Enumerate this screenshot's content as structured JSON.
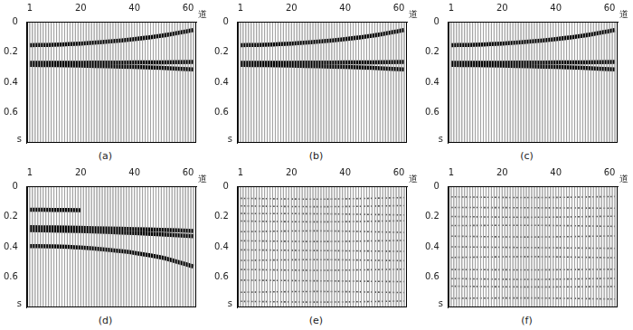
{
  "chart_data": [
    {
      "type": "line",
      "title": "(a)",
      "x_label": "道",
      "y_label": "s",
      "traces": 62,
      "xlim": [
        0,
        63
      ],
      "xticks": [
        1,
        20,
        40,
        60
      ],
      "ylim": [
        0,
        0.8
      ],
      "yticks": [
        0,
        0.2,
        0.4,
        0.6
      ],
      "x": [
        1,
        10,
        20,
        30,
        40,
        50,
        62
      ],
      "series": [
        {
          "color": "#000000",
          "line_style": "solid",
          "values": [
            0.155,
            0.152,
            0.145,
            0.132,
            0.115,
            0.093,
            0.055
          ]
        },
        {
          "color": "#000000",
          "line_style": "solid",
          "values": [
            0.272,
            0.272,
            0.271,
            0.27,
            0.269,
            0.268,
            0.266
          ]
        },
        {
          "color": "#000000",
          "line_style": "solid",
          "values": [
            0.285,
            0.287,
            0.29,
            0.294,
            0.299,
            0.305,
            0.315
          ]
        }
      ]
    },
    {
      "type": "line",
      "title": "(b)",
      "x_label": "道",
      "y_label": "s",
      "traces": 62,
      "xlim": [
        0,
        63
      ],
      "xticks": [
        1,
        20,
        40,
        60
      ],
      "ylim": [
        0,
        0.8
      ],
      "yticks": [
        0,
        0.2,
        0.4,
        0.6
      ],
      "x": [
        1,
        10,
        20,
        30,
        40,
        50,
        62
      ],
      "series": [
        {
          "color": "#000000",
          "line_style": "solid",
          "values": [
            0.155,
            0.152,
            0.145,
            0.132,
            0.115,
            0.093,
            0.055
          ]
        },
        {
          "color": "#000000",
          "line_style": "solid",
          "values": [
            0.272,
            0.272,
            0.271,
            0.27,
            0.269,
            0.268,
            0.266
          ]
        },
        {
          "color": "#000000",
          "line_style": "solid",
          "values": [
            0.285,
            0.287,
            0.29,
            0.294,
            0.299,
            0.305,
            0.315
          ]
        }
      ]
    },
    {
      "type": "line",
      "title": "(c)",
      "x_label": "道",
      "y_label": "s",
      "traces": 62,
      "xlim": [
        0,
        63
      ],
      "xticks": [
        1,
        20,
        40,
        60
      ],
      "ylim": [
        0,
        0.8
      ],
      "yticks": [
        0,
        0.2,
        0.4,
        0.6
      ],
      "x": [
        1,
        10,
        20,
        30,
        40,
        50,
        62
      ],
      "series": [
        {
          "color": "#000000",
          "line_style": "solid",
          "values": [
            0.155,
            0.152,
            0.145,
            0.132,
            0.115,
            0.093,
            0.055
          ]
        },
        {
          "color": "#000000",
          "line_style": "solid",
          "values": [
            0.272,
            0.272,
            0.271,
            0.27,
            0.269,
            0.268,
            0.266
          ]
        },
        {
          "color": "#000000",
          "line_style": "solid",
          "values": [
            0.285,
            0.287,
            0.29,
            0.294,
            0.299,
            0.305,
            0.315
          ]
        }
      ]
    },
    {
      "type": "line",
      "title": "(d)",
      "x_label": "道",
      "y_label": "s",
      "traces": 62,
      "xlim": [
        0,
        63
      ],
      "xticks": [
        1,
        20,
        40,
        60
      ],
      "ylim": [
        0,
        0.8
      ],
      "yticks": [
        0,
        0.2,
        0.4,
        0.6
      ],
      "x": [
        1,
        10,
        20,
        30,
        40,
        50,
        62
      ],
      "series": [
        {
          "color": "#000000",
          "line_style": "solid",
          "values": [
            0.155,
            0.156,
            0.158,
            null,
            null,
            null,
            null
          ]
        },
        {
          "color": "#000000",
          "line_style": "solid",
          "values": [
            0.27,
            0.272,
            0.275,
            0.279,
            0.283,
            0.288,
            0.295
          ]
        },
        {
          "color": "#000000",
          "line_style": "solid",
          "values": [
            0.29,
            0.292,
            0.296,
            0.302,
            0.309,
            0.318,
            0.33
          ]
        },
        {
          "color": "#000000",
          "line_style": "solid",
          "values": [
            0.395,
            0.397,
            0.405,
            0.42,
            0.44,
            0.47,
            0.53
          ]
        }
      ]
    },
    {
      "type": "line",
      "title": "(e)",
      "x_label": "道",
      "y_label": "s",
      "traces": 62,
      "xlim": [
        0,
        63
      ],
      "xticks": [
        1,
        20,
        40,
        60
      ],
      "ylim": [
        0,
        0.8
      ],
      "yticks": [
        0,
        0.2,
        0.4,
        0.6
      ],
      "x": [
        1,
        31,
        62
      ],
      "series": [
        {
          "color": "#555555",
          "line_style": "dotted",
          "values": [
            0.08,
            0.085,
            0.075
          ]
        },
        {
          "color": "#555555",
          "line_style": "dotted",
          "values": [
            0.13,
            0.135,
            0.128
          ]
        },
        {
          "color": "#555555",
          "line_style": "dotted",
          "values": [
            0.18,
            0.182,
            0.19
          ]
        },
        {
          "color": "#555555",
          "line_style": "dotted",
          "values": [
            0.23,
            0.235,
            0.228
          ]
        },
        {
          "color": "#555555",
          "line_style": "dotted",
          "values": [
            0.3,
            0.295,
            0.305
          ]
        },
        {
          "color": "#555555",
          "line_style": "dotted",
          "values": [
            0.36,
            0.365,
            0.358
          ]
        },
        {
          "color": "#555555",
          "line_style": "dotted",
          "values": [
            0.42,
            0.425,
            0.43
          ]
        },
        {
          "color": "#555555",
          "line_style": "dotted",
          "values": [
            0.49,
            0.485,
            0.492
          ]
        },
        {
          "color": "#555555",
          "line_style": "dotted",
          "values": [
            0.55,
            0.555,
            0.548
          ]
        },
        {
          "color": "#555555",
          "line_style": "dotted",
          "values": [
            0.62,
            0.625,
            0.63
          ]
        },
        {
          "color": "#555555",
          "line_style": "dotted",
          "values": [
            0.7,
            0.695,
            0.702
          ]
        },
        {
          "color": "#555555",
          "line_style": "dotted",
          "values": [
            0.76,
            0.765,
            0.758
          ]
        }
      ]
    },
    {
      "type": "line",
      "title": "(f)",
      "x_label": "道",
      "y_label": "s",
      "traces": 62,
      "xlim": [
        0,
        63
      ],
      "xticks": [
        1,
        20,
        40,
        60
      ],
      "ylim": [
        0,
        0.8
      ],
      "yticks": [
        0,
        0.2,
        0.4,
        0.6
      ],
      "x": [
        1,
        31,
        62
      ],
      "series": [
        {
          "color": "#555555",
          "line_style": "dotted",
          "values": [
            0.07,
            0.075,
            0.068
          ]
        },
        {
          "color": "#555555",
          "line_style": "dotted",
          "values": [
            0.14,
            0.142,
            0.145
          ]
        },
        {
          "color": "#555555",
          "line_style": "dotted",
          "values": [
            0.2,
            0.205,
            0.198
          ]
        },
        {
          "color": "#555555",
          "line_style": "dotted",
          "values": [
            0.26,
            0.258,
            0.265
          ]
        },
        {
          "color": "#555555",
          "line_style": "dotted",
          "values": [
            0.33,
            0.335,
            0.328
          ]
        },
        {
          "color": "#555555",
          "line_style": "dotted",
          "values": [
            0.4,
            0.405,
            0.41
          ]
        },
        {
          "color": "#555555",
          "line_style": "dotted",
          "values": [
            0.47,
            0.465,
            0.472
          ]
        },
        {
          "color": "#555555",
          "line_style": "dotted",
          "values": [
            0.55,
            0.552,
            0.548
          ]
        },
        {
          "color": "#555555",
          "line_style": "dotted",
          "values": [
            0.61,
            0.615,
            0.608
          ]
        },
        {
          "color": "#555555",
          "line_style": "dotted",
          "values": [
            0.66,
            0.665,
            0.662
          ]
        },
        {
          "color": "#555555",
          "line_style": "dotted",
          "values": [
            0.74,
            0.738,
            0.745
          ]
        }
      ]
    }
  ]
}
